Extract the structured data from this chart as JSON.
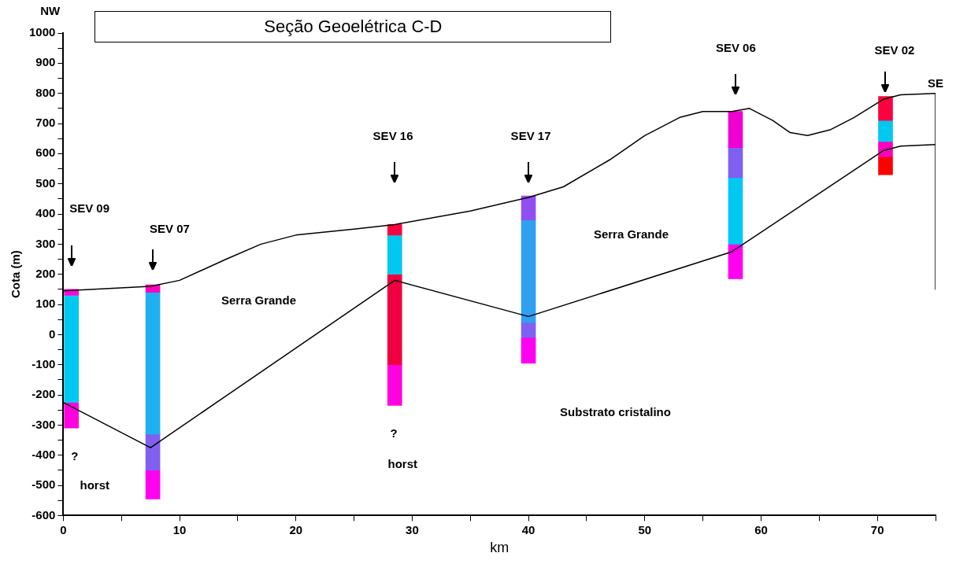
{
  "chart_data": {
    "type": "line",
    "title": "Seção Geoelétrica C-D",
    "xlabel": "km",
    "ylabel": "Cota (m)",
    "xlim": [
      0,
      75
    ],
    "xticks": [
      0,
      {
        "value": 5,
        "label": null
      },
      10,
      {
        "value": 15,
        "label": null
      },
      20,
      {
        "value": 25,
        "label": null
      },
      30,
      {
        "value": 35,
        "label": null
      },
      40,
      {
        "value": 45,
        "label": null
      },
      50,
      {
        "value": 55,
        "label": null
      },
      60,
      {
        "value": 65,
        "label": null
      },
      70,
      {
        "value": 75,
        "label": null
      }
    ],
    "ylim": [
      -600,
      1000
    ],
    "yticks": [
      -600,
      {
        "value": -550,
        "label": null
      },
      -500,
      {
        "value": -450,
        "label": null
      },
      -400,
      {
        "value": -350,
        "label": null
      },
      -300,
      {
        "value": -250,
        "label": null
      },
      -200,
      {
        "value": -150,
        "label": null
      },
      -100,
      {
        "value": -50,
        "label": null
      },
      0,
      {
        "value": 50,
        "label": null
      },
      100,
      {
        "value": 150,
        "label": null
      },
      200,
      {
        "value": 250,
        "label": null
      },
      300,
      {
        "value": 350,
        "label": null
      },
      400,
      {
        "value": 450,
        "label": null
      },
      500,
      {
        "value": 550,
        "label": null
      },
      600,
      {
        "value": 650,
        "label": null
      },
      700,
      {
        "value": 750,
        "label": null
      },
      800,
      {
        "value": 850,
        "label": null
      },
      900,
      {
        "value": 950,
        "label": null
      },
      1000
    ],
    "grid": false,
    "legend": false,
    "marker": "none",
    "line_style": "solid",
    "series": [
      {
        "color": "#000000",
        "x": [
          0,
          7.5,
          10,
          14,
          17,
          20,
          25,
          28.5,
          35,
          40,
          43,
          47,
          50,
          53,
          55,
          57.5,
          59,
          61,
          62.5,
          64,
          66,
          68,
          70.5,
          72,
          75
        ],
        "values": [
          145,
          160,
          180,
          250,
          300,
          330,
          350,
          365,
          410,
          455,
          490,
          580,
          660,
          720,
          740,
          740,
          750,
          710,
          670,
          660,
          680,
          720,
          780,
          795,
          800
        ]
      },
      {
        "color": "#000000",
        "x": [
          0,
          7.5,
          28.5,
          40,
          57.5,
          70.5,
          72,
          75
        ],
        "values": [
          -225,
          -375,
          180,
          60,
          275,
          610,
          625,
          630
        ]
      },
      {
        "color": "#000000",
        "x": [
          75,
          75
        ],
        "values": [
          800,
          150
        ]
      },
      {
        "type": "bar",
        "x": [
          0.7,
          7.7,
          28.5,
          40,
          57.8,
          70.7
        ],
        "base": [
          130,
          140,
          330,
          380,
          620,
          710
        ],
        "values": [
          20,
          25,
          35,
          80,
          120,
          80
        ],
        "colors": [
          "#ff00e0",
          "#ff00c0",
          "#ff0040",
          "#9050f0",
          "#f000d0",
          "#ff0040"
        ]
      },
      {
        "type": "bar",
        "x": [
          0.7,
          7.7,
          28.5,
          40,
          57.8,
          70.7
        ],
        "base": [
          -225,
          -330,
          200,
          40,
          520,
          640
        ],
        "values": [
          355,
          470,
          130,
          340,
          100,
          70
        ],
        "colors": [
          "#00c8f0",
          "#20b0f0",
          "#00c8f0",
          "#30a0f0",
          "#8060f0",
          "#00c8f0"
        ]
      },
      {
        "type": "bar",
        "x": [
          0.7,
          7.7,
          28.5,
          40,
          57.8,
          70.7
        ],
        "base": [
          -310,
          -450,
          -100,
          -10,
          300,
          590
        ],
        "values": [
          85,
          120,
          300,
          50,
          220,
          50
        ],
        "colors": [
          "#ff00e0",
          "#8060f0",
          "#f00040",
          "#8060f0",
          "#00c8f0",
          "#ff00c0"
        ]
      },
      {
        "type": "bar",
        "x": [
          7.7,
          28.5,
          40,
          57.8,
          70.7
        ],
        "base": [
          -545,
          -235,
          -95,
          185,
          530
        ],
        "values": [
          95,
          135,
          85,
          115,
          60
        ],
        "colors": [
          "#ff00f0",
          "#ff00e0",
          "#ff00f0",
          "#ff00f0",
          "#ff0000"
        ]
      }
    ],
    "annotations": [
      "NW",
      "SE",
      "SEV 09",
      "SEV 07",
      "SEV 16",
      "SEV 17",
      "SEV 06",
      "SEV 02",
      "Serra Grande",
      "Serra Grande",
      "Substrato cristalino",
      "?",
      "horst",
      "?",
      "horst"
    ]
  }
}
